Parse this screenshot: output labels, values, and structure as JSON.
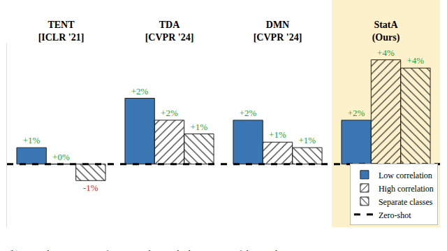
{
  "chart_data": {
    "type": "bar",
    "categories": [
      "TENT\n[ICLR '21]",
      "TDA\n[CVPR '24]",
      "DMN\n[CVPR '24]",
      "StatA\n(Ours)"
    ],
    "highlight": "StatA\n(Ours)",
    "series": [
      {
        "name": "Low correlation",
        "color": "#3a76b4",
        "values": [
          0.6,
          2.4,
          1.6,
          1.6
        ],
        "value_labels": [
          "+1%",
          "+2%",
          "+2%",
          "+2%"
        ]
      },
      {
        "name": "High correlation",
        "color": "#a8c3e3",
        "values": [
          0.0,
          1.6,
          0.8,
          3.8
        ],
        "value_labels": [
          "+0%",
          "+2%",
          "+1%",
          "+4%"
        ]
      },
      {
        "name": "Separate classes",
        "color": "#f4a261",
        "values": [
          -0.6,
          1.1,
          0.6,
          3.5
        ],
        "value_labels": [
          "-1%",
          "+1%",
          "+1%",
          "+4%"
        ]
      }
    ],
    "reference_line": {
      "name": "Zero-shot",
      "value": 0,
      "color": "#000000",
      "line_style": "dash"
    },
    "ylim": [
      -2.3,
      4.4
    ],
    "data_labels": true,
    "tick_labels": "x",
    "grid": false,
    "legend": "lower right",
    "caption": "(b) StatA shows strong performance when applied on streams of data, with"
  }
}
